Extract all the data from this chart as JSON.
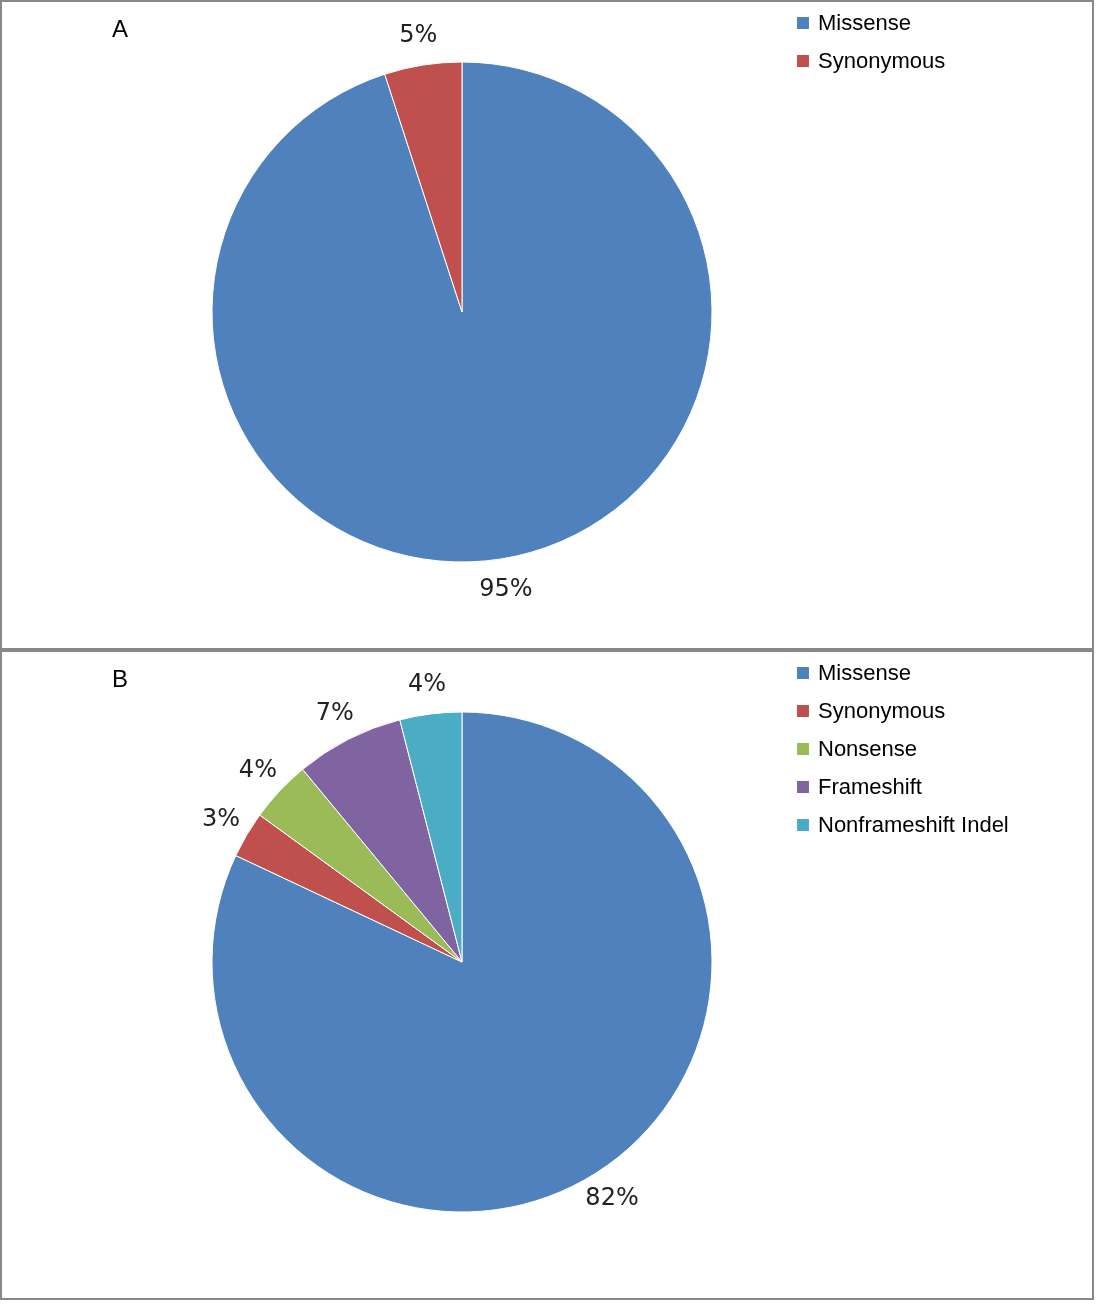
{
  "chart_data": [
    {
      "type": "pie",
      "title": "A",
      "categories": [
        "Missense",
        "Synonymous"
      ],
      "values": [
        95,
        5
      ],
      "colors": [
        "#4f81bd",
        "#c0504d"
      ],
      "value_labels": [
        "95%",
        "5%"
      ],
      "legend": "right"
    },
    {
      "type": "pie",
      "title": "B",
      "categories": [
        "Missense",
        "Synonymous",
        "Nonsense",
        "Frameshift",
        "Nonframeshift Indel"
      ],
      "values": [
        82,
        3,
        4,
        7,
        4
      ],
      "colors": [
        "#4f81bd",
        "#c0504d",
        "#9bbb59",
        "#8064a2",
        "#4bacc6"
      ],
      "value_labels": [
        "82%",
        "3%",
        "4%",
        "7%",
        "4%"
      ],
      "legend": "right"
    }
  ]
}
